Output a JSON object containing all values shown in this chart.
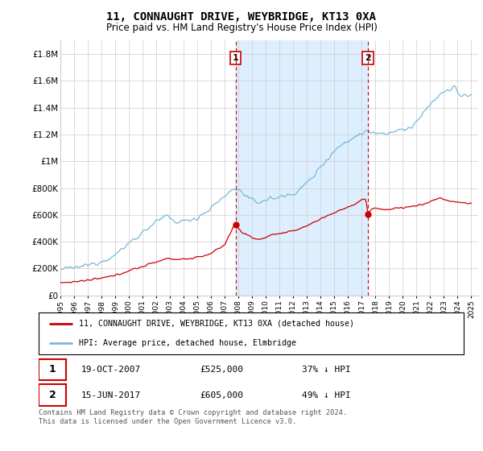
{
  "title": "11, CONNAUGHT DRIVE, WEYBRIDGE, KT13 0XA",
  "subtitle": "Price paid vs. HM Land Registry's House Price Index (HPI)",
  "ylabel_ticks": [
    "£0",
    "£200K",
    "£400K",
    "£600K",
    "£800K",
    "£1M",
    "£1.2M",
    "£1.4M",
    "£1.6M",
    "£1.8M"
  ],
  "ytick_values": [
    0,
    200000,
    400000,
    600000,
    800000,
    1000000,
    1200000,
    1400000,
    1600000,
    1800000
  ],
  "ylim": [
    0,
    1900000
  ],
  "xlim_start": 1995.0,
  "xlim_end": 2025.5,
  "sale1_date": 2007.8,
  "sale1_price": 525000,
  "sale1_text": "19-OCT-2007",
  "sale1_pct": "37% ↓ HPI",
  "sale2_date": 2017.45,
  "sale2_price": 605000,
  "sale2_text": "15-JUN-2017",
  "sale2_pct": "49% ↓ HPI",
  "hpi_color": "#7ab8d8",
  "price_color": "#cc0000",
  "vline_color": "#cc0000",
  "span_color": "#ddeeff",
  "legend_line1": "11, CONNAUGHT DRIVE, WEYBRIDGE, KT13 0XA (detached house)",
  "legend_line2": "HPI: Average price, detached house, Elmbridge",
  "footer": "Contains HM Land Registry data © Crown copyright and database right 2024.\nThis data is licensed under the Open Government Licence v3.0."
}
